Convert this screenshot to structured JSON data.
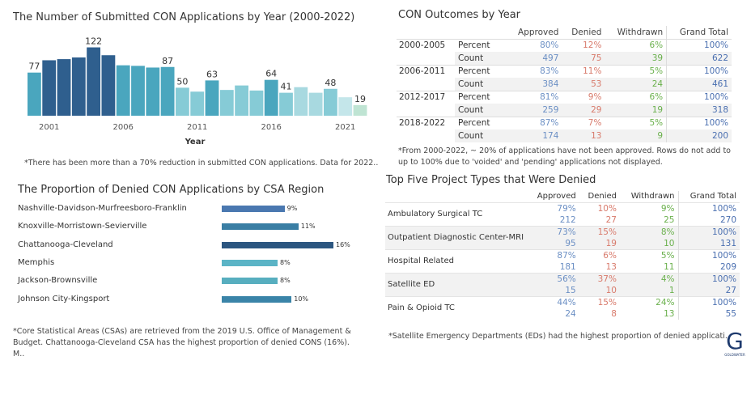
{
  "bar_chart": {
    "title": "The Number of Submitted CON Applications by Year (2000-2022)",
    "note": "*There has been more than a 70% reduction in submitted CON applications. Data for 2022..",
    "chart_data": {
      "type": "bar",
      "categories": [
        "2000",
        "2001",
        "2002",
        "2003",
        "2004",
        "2005",
        "2006",
        "2007",
        "2008",
        "2009",
        "2010",
        "2011",
        "2012",
        "2013",
        "2014",
        "2015",
        "2016",
        "2017",
        "2018",
        "2019",
        "2020",
        "2021",
        "2022"
      ],
      "values": [
        77,
        99,
        101,
        104,
        122,
        108,
        90,
        89,
        86,
        87,
        50,
        43,
        63,
        46,
        54,
        45,
        64,
        41,
        51,
        41,
        48,
        33,
        19
      ],
      "colors": [
        "#4aa6be",
        "#2f5f8e",
        "#2f5f8e",
        "#2f5f8e",
        "#2f5f8e",
        "#2f5f8e",
        "#4aa6be",
        "#4aa6be",
        "#4aa6be",
        "#4aa6be",
        "#86cbd6",
        "#86cbd6",
        "#4aa6be",
        "#86cbd6",
        "#86cbd6",
        "#86cbd6",
        "#4aa6be",
        "#86cbd6",
        "#a8d9e0",
        "#a8d9e0",
        "#86cbd6",
        "#c4e6ea",
        "#bfe4d3"
      ],
      "data_labels": [
        {
          "index": 0,
          "text": "77"
        },
        {
          "index": 4,
          "text": "122"
        },
        {
          "index": 9,
          "text": "87"
        },
        {
          "index": 10,
          "text": "50"
        },
        {
          "index": 12,
          "text": "63"
        },
        {
          "index": 16,
          "text": "64"
        },
        {
          "index": 17,
          "text": "41"
        },
        {
          "index": 20,
          "text": "48"
        },
        {
          "index": 22,
          "text": "19"
        }
      ],
      "x_ticks": [
        {
          "index": 1,
          "text": "2001"
        },
        {
          "index": 6,
          "text": "2006"
        },
        {
          "index": 11,
          "text": "2011"
        },
        {
          "index": 16,
          "text": "2016"
        },
        {
          "index": 21,
          "text": "2021"
        }
      ],
      "xlabel": "Year",
      "ylim": [
        0,
        130
      ],
      "grid": false
    }
  },
  "outcomes": {
    "title": "CON Outcomes by Year",
    "headers": [
      "Approved",
      "Denied",
      "Withdrawn",
      "Grand Total"
    ],
    "groups": [
      {
        "period": "2000-2005",
        "rows": [
          {
            "metric": "Percent",
            "values": [
              "80%",
              "12%",
              "6%",
              "100%"
            ]
          },
          {
            "metric": "Count",
            "values": [
              "497",
              "75",
              "39",
              "622"
            ]
          }
        ]
      },
      {
        "period": "2006-2011",
        "rows": [
          {
            "metric": "Percent",
            "values": [
              "83%",
              "11%",
              "5%",
              "100%"
            ]
          },
          {
            "metric": "Count",
            "values": [
              "384",
              "53",
              "24",
              "461"
            ]
          }
        ]
      },
      {
        "period": "2012-2017",
        "rows": [
          {
            "metric": "Percent",
            "values": [
              "81%",
              "9%",
              "6%",
              "100%"
            ]
          },
          {
            "metric": "Count",
            "values": [
              "259",
              "29",
              "19",
              "318"
            ]
          }
        ]
      },
      {
        "period": "2018-2022",
        "rows": [
          {
            "metric": "Percent",
            "values": [
              "87%",
              "7%",
              "5%",
              "100%"
            ]
          },
          {
            "metric": "Count",
            "values": [
              "174",
              "13",
              "9",
              "200"
            ]
          }
        ]
      }
    ],
    "note": "*From 2000-2022, ~ 20% of applications have not been approved. Rows do not add to up to 100% due to 'voided' and 'pending' applications not displayed."
  },
  "regions": {
    "title": "The Proportion of Denied CON Applications by CSA Region",
    "chart_data": {
      "type": "bar",
      "orientation": "horizontal",
      "categories": [
        "Nashville-Davidson-Murfreesboro-Franklin",
        "Knoxville-Morristown-Sevierville",
        "Chattanooga-Cleveland",
        "Memphis",
        "Jackson-Brownsville",
        "Johnson City-Kingsport"
      ],
      "values": [
        9,
        11,
        16,
        8,
        8,
        10
      ],
      "labels": [
        "9%",
        "11%",
        "16%",
        "8%",
        "8%",
        "10%"
      ],
      "colors": [
        "#4a78b0",
        "#3a7ea4",
        "#2c5680",
        "#5bb4c6",
        "#57aebf",
        "#3a84a8"
      ],
      "xlim": [
        0,
        16
      ]
    },
    "note": "*Core Statistical Areas (CSAs) are retrieved from the 2019 U.S. Office of Management & Budget. Chattanooga-Cleveland CSA has the highest proportion of denied CONS (16%). M.."
  },
  "projects": {
    "title": "Top Five Project Types that Were Denied",
    "headers": [
      "Approved",
      "Denied",
      "Withdrawn",
      "Grand Total"
    ],
    "rows": [
      {
        "type": "Ambulatory Surgical TC",
        "percent": [
          "79%",
          "10%",
          "9%",
          "100%"
        ],
        "count": [
          "212",
          "27",
          "25",
          "270"
        ]
      },
      {
        "type": "Outpatient Diagnostic Center-MRI",
        "percent": [
          "73%",
          "15%",
          "8%",
          "100%"
        ],
        "count": [
          "95",
          "19",
          "10",
          "131"
        ]
      },
      {
        "type": "Hospital Related",
        "percent": [
          "87%",
          "6%",
          "5%",
          "100%"
        ],
        "count": [
          "181",
          "13",
          "11",
          "209"
        ]
      },
      {
        "type": "Satellite ED",
        "percent": [
          "56%",
          "37%",
          "4%",
          "100%"
        ],
        "count": [
          "15",
          "10",
          "1",
          "27"
        ]
      },
      {
        "type": "Pain & Opioid TC",
        "percent": [
          "44%",
          "15%",
          "24%",
          "100%"
        ],
        "count": [
          "24",
          "8",
          "13",
          "55"
        ]
      }
    ],
    "note": "*Satellite Emergency Departments (EDs) had the highest proportion of denied applicati.."
  },
  "logo": {
    "letter": "G",
    "text": "GOLDWATER",
    "color": "#1f3b6e"
  }
}
